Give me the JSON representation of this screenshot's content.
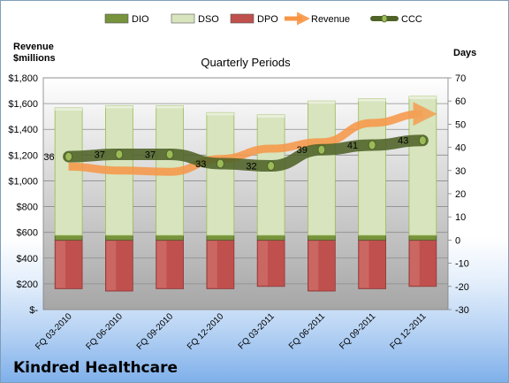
{
  "chart_data": {
    "type": "bar",
    "title": "Quarterly Periods",
    "ylabel_left": "Revenue\n$millions",
    "ylabel_right": "Days",
    "categories": [
      "FQ 03-2010",
      "FQ 06-2010",
      "FQ 09-2010",
      "FQ 12-2010",
      "FQ 03-2011",
      "FQ 06-2011",
      "FQ 09-2011",
      "FQ 12-2011"
    ],
    "ylim_left": [
      0,
      1800
    ],
    "ylim_right": [
      -30,
      70
    ],
    "yticks_left": [
      "$-",
      "$200",
      "$400",
      "$600",
      "$800",
      "$1,000",
      "$1,200",
      "$1,400",
      "$1,600",
      "$1,800"
    ],
    "yticks_right": [
      "-30",
      "-20",
      "-10",
      "0",
      "10",
      "20",
      "30",
      "40",
      "50",
      "60",
      "70"
    ],
    "legend_position": "top",
    "series": [
      {
        "name": "DIO",
        "axis": "right",
        "kind": "stacked-bar",
        "color": "#77933c",
        "values": [
          2,
          2,
          2,
          2,
          2,
          2,
          2,
          2
        ]
      },
      {
        "name": "DSO",
        "axis": "right",
        "kind": "stacked-bar",
        "color": "#d7e4bd",
        "values": [
          55,
          56,
          56,
          53,
          52,
          58,
          59,
          60
        ]
      },
      {
        "name": "DPO",
        "axis": "right",
        "kind": "negative-bar",
        "color": "#c0504d",
        "values": [
          -21,
          -22,
          -21,
          -21,
          -20,
          -22,
          -21,
          -20
        ]
      },
      {
        "name": "Revenue",
        "axis": "left",
        "kind": "line",
        "color": "#f79646",
        "values": [
          1110,
          1080,
          1070,
          1170,
          1250,
          1300,
          1450,
          1520
        ]
      },
      {
        "name": "CCC",
        "axis": "right",
        "kind": "line",
        "color": "#4f6228",
        "values": [
          36,
          37,
          37,
          33,
          32,
          39,
          41,
          43
        ],
        "labels": [
          "36",
          "37",
          "37",
          "33",
          "32",
          "39",
          "41",
          "43"
        ]
      }
    ],
    "grid": true
  },
  "footer": {
    "company": "Kindred Healthcare"
  }
}
